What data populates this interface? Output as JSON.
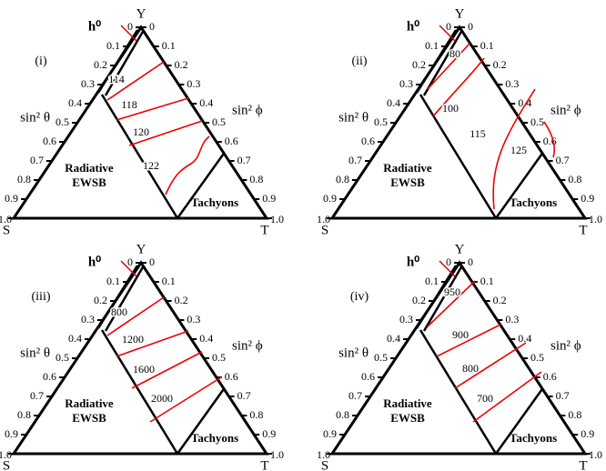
{
  "panels": [
    {
      "label": "(i)",
      "contours": [
        114,
        118,
        120,
        122
      ]
    },
    {
      "label": "(ii)",
      "contours": [
        80,
        100,
        115,
        125
      ]
    },
    {
      "label": "(iii)",
      "contours": [
        800,
        1200,
        1600,
        2000
      ]
    },
    {
      "label": "(iv)",
      "contours": [
        950,
        900,
        800,
        700
      ]
    }
  ],
  "h_label": "h⁰",
  "corners": {
    "top": "Y",
    "left": "S",
    "right": "T"
  },
  "left_axis": "sin² θ",
  "right_axis": "sin² ϕ",
  "ticks": [
    "0",
    "0.1",
    "0.2",
    "0.3",
    "0.4",
    "0.5",
    "0.6",
    "0.7",
    "0.8",
    "0.9",
    "1.0"
  ],
  "regions": {
    "radiative": "Radiative",
    "ewsb": "EWSB",
    "tachyons": "Tachyons"
  }
}
